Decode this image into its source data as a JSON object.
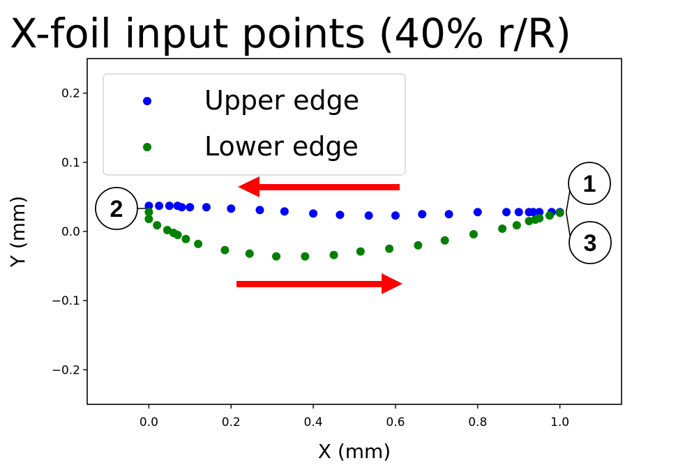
{
  "chart_data": {
    "type": "scatter",
    "title": "X-foil input points  (40% r/R)",
    "xlabel": "X (mm)",
    "ylabel": "Y (mm)",
    "xlim": [
      -0.15,
      1.15
    ],
    "ylim": [
      -0.25,
      0.25
    ],
    "xticks": [
      0.0,
      0.2,
      0.4,
      0.6,
      0.8,
      1.0
    ],
    "xtick_labels": [
      "0.0",
      "0.2",
      "0.4",
      "0.6",
      "0.8",
      "1.0"
    ],
    "yticks": [
      0.2,
      0.1,
      0.0,
      -0.1,
      -0.2
    ],
    "ytick_labels": [
      "0.2",
      "0.1",
      "0.0",
      "−0.1",
      "−0.2"
    ],
    "grid": false,
    "legend_position": "upper-left",
    "series": [
      {
        "name": "Upper edge",
        "color": "#0000ff",
        "x": [
          0.0,
          0.025,
          0.05,
          0.07,
          0.08,
          0.1,
          0.14,
          0.2,
          0.27,
          0.33,
          0.4,
          0.465,
          0.535,
          0.6,
          0.665,
          0.73,
          0.8,
          0.87,
          0.9,
          0.925,
          0.935,
          0.95,
          0.98,
          1.0
        ],
        "y": [
          0.037,
          0.037,
          0.037,
          0.037,
          0.035,
          0.035,
          0.035,
          0.033,
          0.031,
          0.029,
          0.026,
          0.024,
          0.023,
          0.023,
          0.025,
          0.025,
          0.028,
          0.028,
          0.028,
          0.028,
          0.028,
          0.028,
          0.028,
          0.028
        ]
      },
      {
        "name": "Lower edge",
        "color": "#008000",
        "x": [
          0.0,
          0.0,
          0.02,
          0.045,
          0.06,
          0.07,
          0.09,
          0.12,
          0.185,
          0.245,
          0.31,
          0.38,
          0.45,
          0.515,
          0.585,
          0.655,
          0.72,
          0.79,
          0.86,
          0.895,
          0.925,
          0.94,
          0.95,
          0.975,
          1.0
        ],
        "y": [
          0.028,
          0.018,
          0.009,
          0.002,
          -0.002,
          -0.005,
          -0.011,
          -0.018,
          -0.027,
          -0.032,
          -0.036,
          -0.036,
          -0.034,
          -0.029,
          -0.025,
          -0.02,
          -0.013,
          -0.004,
          0.004,
          0.009,
          0.015,
          0.017,
          0.019,
          0.023,
          0.027
        ]
      }
    ],
    "annotations": {
      "callouts": [
        "1",
        "2",
        "3"
      ],
      "arrows": [
        {
          "direction": "left",
          "color": "#ff0000"
        },
        {
          "direction": "right",
          "color": "#ff0000"
        }
      ]
    }
  }
}
